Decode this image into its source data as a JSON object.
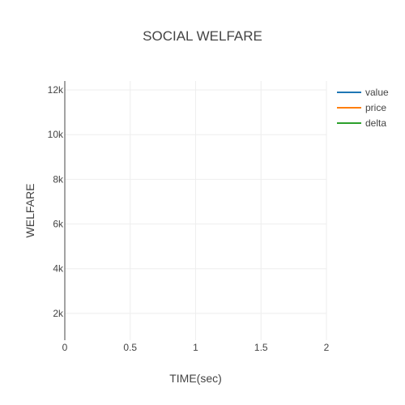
{
  "chart_data": {
    "type": "line",
    "title": "SOCIAL WELFARE",
    "xlabel": "TIME(sec)",
    "ylabel": "WELFARE",
    "xlim": [
      0,
      2
    ],
    "ylim": [
      800,
      12400
    ],
    "x_ticks": [
      0,
      0.5,
      1,
      1.5,
      2
    ],
    "x_tick_labels": [
      "0",
      "0.5",
      "1",
      "1.5",
      "2"
    ],
    "y_ticks": [
      2000,
      4000,
      6000,
      8000,
      10000,
      12000
    ],
    "y_tick_labels": [
      "2k",
      "4k",
      "6k",
      "8k",
      "10k",
      "12k"
    ],
    "grid": true,
    "legend_position": "top-right",
    "series": [
      {
        "name": "value",
        "color": "#1f77b4",
        "x": [],
        "y": []
      },
      {
        "name": "price",
        "color": "#ff7f0e",
        "x": [],
        "y": []
      },
      {
        "name": "delta",
        "color": "#2ca02c",
        "x": [],
        "y": []
      }
    ]
  }
}
